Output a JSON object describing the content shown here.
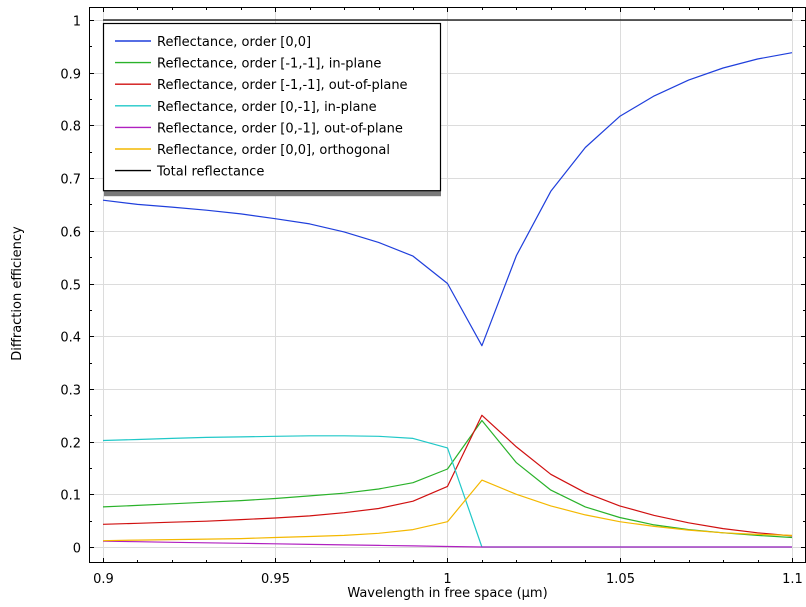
{
  "chart_data": {
    "type": "line",
    "title": "",
    "xlabel": "Wavelength in free space (µm)",
    "ylabel": "Diffraction efficiency",
    "xlim": [
      0.9,
      1.1
    ],
    "ylim": [
      0,
      1
    ],
    "xticks": [
      0.9,
      0.95,
      1,
      1.05,
      1.1
    ],
    "xtick_labels": [
      "0.9",
      "0.95",
      "1",
      "1.05",
      "1.1"
    ],
    "yticks": [
      0,
      0.1,
      0.2,
      0.3,
      0.4,
      0.5,
      0.6,
      0.7,
      0.8,
      0.9,
      1
    ],
    "ytick_labels": [
      "0",
      "0.1",
      "0.2",
      "0.3",
      "0.4",
      "0.5",
      "0.6",
      "0.7",
      "0.8",
      "0.9",
      "1"
    ],
    "grid": true,
    "legend_position": "top-left",
    "x": [
      0.9,
      0.91,
      0.92,
      0.93,
      0.94,
      0.95,
      0.96,
      0.97,
      0.98,
      0.99,
      1.0,
      1.01,
      1.02,
      1.03,
      1.04,
      1.05,
      1.06,
      1.07,
      1.08,
      1.09,
      1.1
    ],
    "series": [
      {
        "name": "Reflectance, order [0,0]",
        "color": "#1f3fdc",
        "values": [
          0.658,
          0.65,
          0.645,
          0.639,
          0.632,
          0.623,
          0.613,
          0.598,
          0.578,
          0.552,
          0.5,
          0.382,
          0.553,
          0.675,
          0.758,
          0.817,
          0.856,
          0.886,
          0.909,
          0.926,
          0.938
        ]
      },
      {
        "name": "Reflectance, order [-1,-1], in-plane",
        "color": "#2ab22a",
        "values": [
          0.076,
          0.079,
          0.082,
          0.085,
          0.088,
          0.092,
          0.097,
          0.102,
          0.11,
          0.122,
          0.148,
          0.24,
          0.16,
          0.108,
          0.076,
          0.056,
          0.042,
          0.033,
          0.027,
          0.022,
          0.018
        ]
      },
      {
        "name": "Reflectance, order [-1,-1], out-of-plane",
        "color": "#d01010",
        "values": [
          0.043,
          0.045,
          0.047,
          0.049,
          0.052,
          0.055,
          0.059,
          0.065,
          0.073,
          0.087,
          0.115,
          0.25,
          0.19,
          0.138,
          0.103,
          0.078,
          0.06,
          0.046,
          0.035,
          0.027,
          0.021
        ]
      },
      {
        "name": "Reflectance, order [0,-1], in-plane",
        "color": "#20c8c8",
        "values": [
          0.202,
          0.204,
          0.206,
          0.208,
          0.209,
          0.21,
          0.211,
          0.211,
          0.21,
          0.206,
          0.188,
          0.0,
          0.0,
          0.0,
          0.0,
          0.0,
          0.0,
          0.0,
          0.0,
          0.0,
          0.0
        ]
      },
      {
        "name": "Reflectance, order [0,-1], out-of-plane",
        "color": "#b020c0",
        "values": [
          0.011,
          0.01,
          0.009,
          0.008,
          0.007,
          0.006,
          0.005,
          0.004,
          0.003,
          0.002,
          0.001,
          0.0,
          0.0,
          0.0,
          0.0,
          0.0,
          0.0,
          0.0,
          0.0,
          0.0,
          0.0
        ]
      },
      {
        "name": "Reflectance, order [0,0], orthogonal",
        "color": "#f4b800",
        "values": [
          0.012,
          0.013,
          0.014,
          0.015,
          0.016,
          0.018,
          0.02,
          0.022,
          0.026,
          0.033,
          0.048,
          0.127,
          0.1,
          0.078,
          0.061,
          0.048,
          0.039,
          0.032,
          0.027,
          0.024,
          0.022
        ]
      },
      {
        "name": "Total reflectance",
        "color": "#000000",
        "values": [
          1,
          1,
          1,
          1,
          1,
          1,
          1,
          1,
          1,
          1,
          1,
          1,
          1,
          1,
          1,
          1,
          1,
          1,
          1,
          1,
          1
        ]
      }
    ]
  }
}
